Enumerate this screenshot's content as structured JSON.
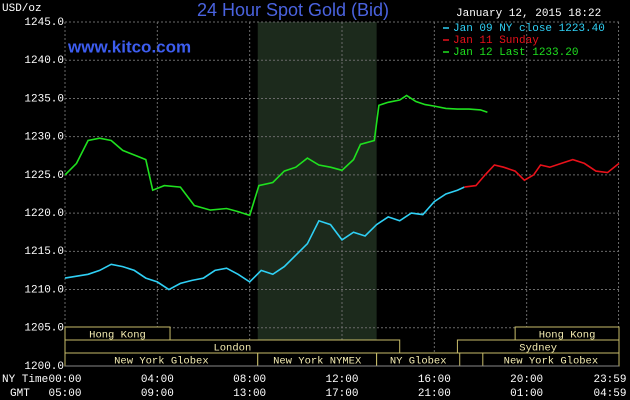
{
  "chart_data": {
    "type": "line",
    "title": "24 Hour Spot Gold (Bid)",
    "site": "www.kitco.com",
    "timestamp": "January 12, 2015 18:22",
    "y_label": "USD/oz",
    "x_label": "NY Time",
    "x2_label": "GMT",
    "xlim": [
      0,
      24
    ],
    "xticks": [
      {
        "value": 0,
        "label": "00:00"
      },
      {
        "value": 4,
        "label": "04:00"
      },
      {
        "value": 8,
        "label": "08:00"
      },
      {
        "value": 12,
        "label": "12:00"
      },
      {
        "value": 16,
        "label": "16:00"
      },
      {
        "value": 20,
        "label": "20:00"
      },
      {
        "value": 23.98,
        "label": "23:59"
      }
    ],
    "x2tick_labels": [
      "05:00",
      "09:00",
      "13:00",
      "17:00",
      "21:00",
      "01:00",
      "04:59"
    ],
    "ylim": [
      1200,
      1245
    ],
    "yticks": [
      {
        "value": 1200,
        "label": "1200.0"
      },
      {
        "value": 1205,
        "label": "1205.0"
      },
      {
        "value": 1210,
        "label": "1210.0"
      },
      {
        "value": 1215,
        "label": "1215.0"
      },
      {
        "value": 1220,
        "label": "1220.0"
      },
      {
        "value": 1225,
        "label": "1225.0"
      },
      {
        "value": 1230,
        "label": "1230.0"
      },
      {
        "value": 1235,
        "label": "1235.0"
      },
      {
        "value": 1240,
        "label": "1240.0"
      },
      {
        "value": 1245,
        "label": "1245.0"
      }
    ],
    "grid": true,
    "shaded_band": [
      8.35,
      13.5
    ],
    "sessions": [
      {
        "name": "Hong Kong",
        "row": 0,
        "start": 0,
        "end": 4.55
      },
      {
        "name": "Hong Kong",
        "row": 0,
        "start": 19.5,
        "end": 24
      },
      {
        "name": "London",
        "row": 1,
        "start": 0,
        "end": 14.5
      },
      {
        "name": "Sydney",
        "row": 1,
        "start": 17,
        "end": 24
      },
      {
        "name": "New York Globex",
        "row": 2,
        "start": 0,
        "end": 8.35
      },
      {
        "name": "New York NYMEX",
        "row": 2,
        "start": 8.35,
        "end": 13.5
      },
      {
        "name": "NY Globex",
        "row": 2,
        "start": 13.5,
        "end": 17.1
      },
      {
        "name": "New York Globex",
        "row": 2,
        "start": 18.1,
        "end": 24
      }
    ],
    "series": [
      {
        "name": "Jan 09 NY close 1223.40",
        "color": "#2fd0f5",
        "x": [
          0,
          1,
          1.5,
          2,
          2.5,
          3,
          3.5,
          4,
          4.5,
          5,
          5.5,
          6,
          6.5,
          7,
          7.5,
          8,
          8.5,
          9,
          9.5,
          10,
          10.5,
          11,
          11.5,
          12,
          12.5,
          13,
          13.5,
          14,
          14.5,
          15,
          15.5,
          16,
          16.5,
          17,
          17.3
        ],
        "values": [
          1211.5,
          1212,
          1212.5,
          1213.3,
          1213,
          1212.5,
          1211.5,
          1211,
          1210,
          1210.8,
          1211.2,
          1211.5,
          1212.5,
          1212.8,
          1212,
          1211,
          1212.5,
          1212,
          1213,
          1214.5,
          1216,
          1219,
          1218.5,
          1216.5,
          1217.5,
          1217,
          1218.5,
          1219.5,
          1219,
          1220,
          1219.8,
          1221.5,
          1222.5,
          1223,
          1223.4
        ]
      },
      {
        "name": "Jan 11 Sunday",
        "color": "#e8111a",
        "x": [
          17.3,
          17.8,
          18.2,
          18.6,
          19,
          19.5,
          19.9,
          20.3,
          20.6,
          21,
          21.5,
          22,
          22.5,
          23,
          23.5,
          24
        ],
        "values": [
          1223.4,
          1223.6,
          1225,
          1226.3,
          1226,
          1225.5,
          1224.3,
          1225,
          1226.3,
          1226,
          1226.5,
          1227,
          1226.5,
          1225.5,
          1225.3,
          1226.5
        ]
      },
      {
        "name": "Jan 12 Last 1233.20",
        "color": "#1fe01f",
        "x": [
          0,
          0.5,
          1,
          1.5,
          2,
          2.5,
          3,
          3.5,
          3.8,
          4.3,
          5,
          5.6,
          6.3,
          7,
          7.5,
          8,
          8.4,
          9,
          9.5,
          10,
          10.5,
          11,
          11.5,
          12,
          12.5,
          12.8,
          13.4,
          13.6,
          14,
          14.5,
          14.8,
          15.2,
          15.6,
          16,
          16.5,
          17,
          17.5,
          18,
          18.3
        ],
        "values": [
          1225,
          1226.5,
          1229.5,
          1229.8,
          1229.5,
          1228.2,
          1227.6,
          1227,
          1223,
          1223.6,
          1223.4,
          1221,
          1220.4,
          1220.6,
          1220.2,
          1219.7,
          1223.6,
          1224,
          1225.5,
          1226,
          1227.2,
          1226.3,
          1226,
          1225.6,
          1227,
          1229,
          1229.5,
          1234.1,
          1234.5,
          1234.8,
          1235.4,
          1234.6,
          1234.2,
          1234,
          1233.7,
          1233.6,
          1233.6,
          1233.5,
          1233.2
        ]
      }
    ]
  }
}
